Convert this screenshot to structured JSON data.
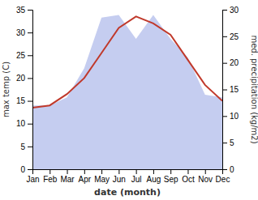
{
  "chart_data": {
    "type": "line",
    "xlabel": "date (month)",
    "ylabel": "max temp (C)",
    "y2label": "med. precipitation (kg/m2)",
    "categories": [
      "Jan",
      "Feb",
      "Mar",
      "Apr",
      "May",
      "Jun",
      "Jul",
      "Aug",
      "Sep",
      "Oct",
      "Nov",
      "Dec"
    ],
    "series": [
      {
        "type": "area",
        "axis": "y2",
        "color": "#c5cdf0",
        "values": [
          12.0,
          12.0,
          13.5,
          19.0,
          28.5,
          29.0,
          24.5,
          29.0,
          24.5,
          21.0,
          14.0,
          13.5
        ]
      },
      {
        "type": "line",
        "color": "#c0392b",
        "values": [
          13.5,
          14.0,
          16.5,
          20.0,
          25.5,
          31.0,
          33.5,
          32.0,
          29.5,
          24.0,
          18.5,
          15.0
        ]
      }
    ],
    "ylim": [
      0,
      35
    ],
    "yticks": [
      0,
      5,
      10,
      15,
      20,
      25,
      30,
      35
    ],
    "y2lim": [
      0,
      30
    ],
    "y2ticks": [
      0,
      5,
      10,
      15,
      20,
      25,
      30
    ],
    "grid": false
  }
}
